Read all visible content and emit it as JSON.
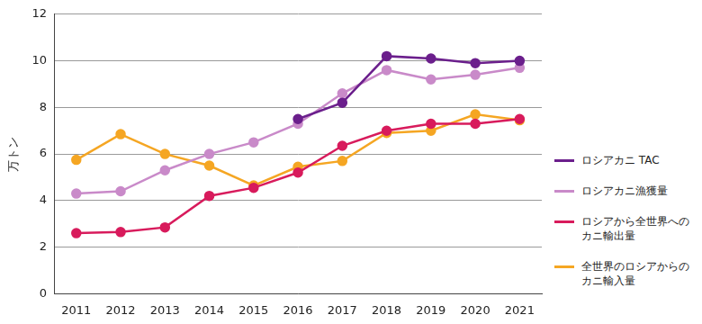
{
  "chart_data": {
    "type": "line",
    "categories": [
      "2011",
      "2012",
      "2013",
      "2014",
      "2015",
      "2016",
      "2017",
      "2018",
      "2019",
      "2020",
      "2021"
    ],
    "y_label": "万トン",
    "ylim": [
      0,
      12
    ],
    "yticks": [
      0,
      2,
      4,
      6,
      8,
      10,
      12
    ],
    "grid": true,
    "legend": "right",
    "marker": "circle",
    "line_style": "solid",
    "series": [
      {
        "name": "ロシアカニ TAC",
        "color": "#6b1f8c",
        "values": [
          null,
          null,
          null,
          null,
          null,
          7.5,
          8.2,
          10.2,
          10.1,
          9.9,
          10.0
        ]
      },
      {
        "name": "ロシアカニ漁獲量",
        "color": "#c98ac9",
        "values": [
          4.3,
          4.4,
          5.3,
          6.0,
          6.5,
          7.3,
          8.6,
          9.6,
          9.2,
          9.4,
          9.7
        ]
      },
      {
        "name": "ロシアから全世界へのカニ輸出量",
        "color": "#d81b5c",
        "values": [
          2.6,
          2.65,
          2.85,
          4.2,
          4.55,
          5.2,
          6.35,
          7.0,
          7.3,
          7.3,
          7.5
        ]
      },
      {
        "name": "全世界のロシアからのカニ輸入量",
        "color": "#f5a623",
        "values": [
          5.75,
          6.85,
          6.0,
          5.5,
          4.65,
          5.45,
          5.7,
          6.9,
          7.0,
          7.7,
          7.45
        ]
      }
    ]
  }
}
